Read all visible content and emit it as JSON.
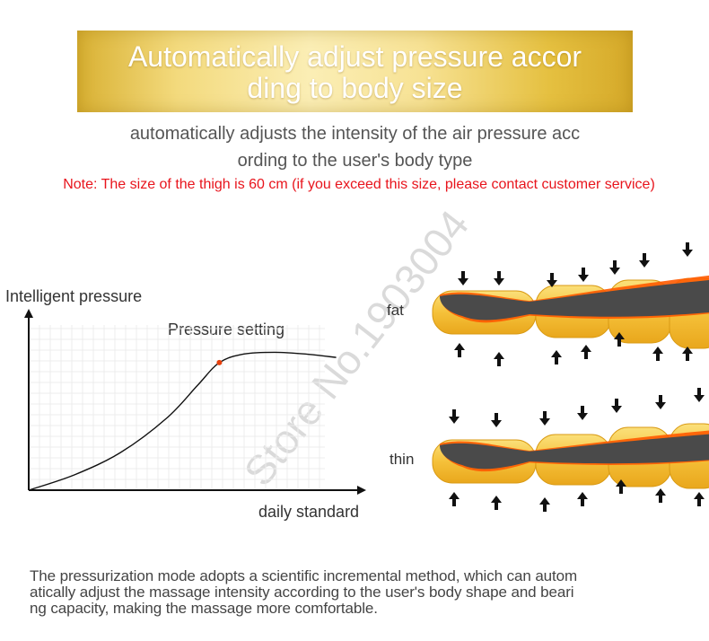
{
  "banner": {
    "title": "Automatically adjust pressure accor\nding to body size"
  },
  "subtitle": "automatically adjusts the intensity of the air pressure acc\nording to the user's body type",
  "note": "Note: The size of the thigh is 60 cm (if you exceed this size, please contact customer service)",
  "watermark": "Store No.1903004",
  "chart_data": {
    "type": "line",
    "title": "",
    "ylabel": "Intelligent pressure",
    "xlabel": "daily standard",
    "annotation": "Pressure setting",
    "grid": true,
    "legend": "none",
    "series": [
      {
        "x": [
          0,
          0.15,
          0.3,
          0.45,
          0.55,
          0.62,
          0.7,
          0.8,
          0.9,
          1.0
        ],
        "y": [
          0,
          0.09,
          0.22,
          0.42,
          0.61,
          0.74,
          0.79,
          0.8,
          0.79,
          0.77
        ]
      }
    ],
    "marker": {
      "x": 0.62,
      "y": 0.74,
      "color": "#e8400c"
    },
    "xlim": [
      0,
      1.08
    ],
    "ylim": [
      0,
      1.0
    ],
    "line_color": "#111111"
  },
  "legs": [
    {
      "label": "fat",
      "colors": {
        "pad": "#f5c13a",
        "glow": "#ff5a00",
        "core": "#4a4a4a"
      }
    },
    {
      "label": "thin",
      "colors": {
        "pad": "#f5c13a",
        "glow": "#ff5a00",
        "core": "#4a4a4a"
      }
    }
  ],
  "bottom_text": "The pressurization mode adopts a scientific incremental method, which can autom\natically adjust the massage intensity according to the user's body shape and beari\nng capacity, making the massage more comfortable."
}
